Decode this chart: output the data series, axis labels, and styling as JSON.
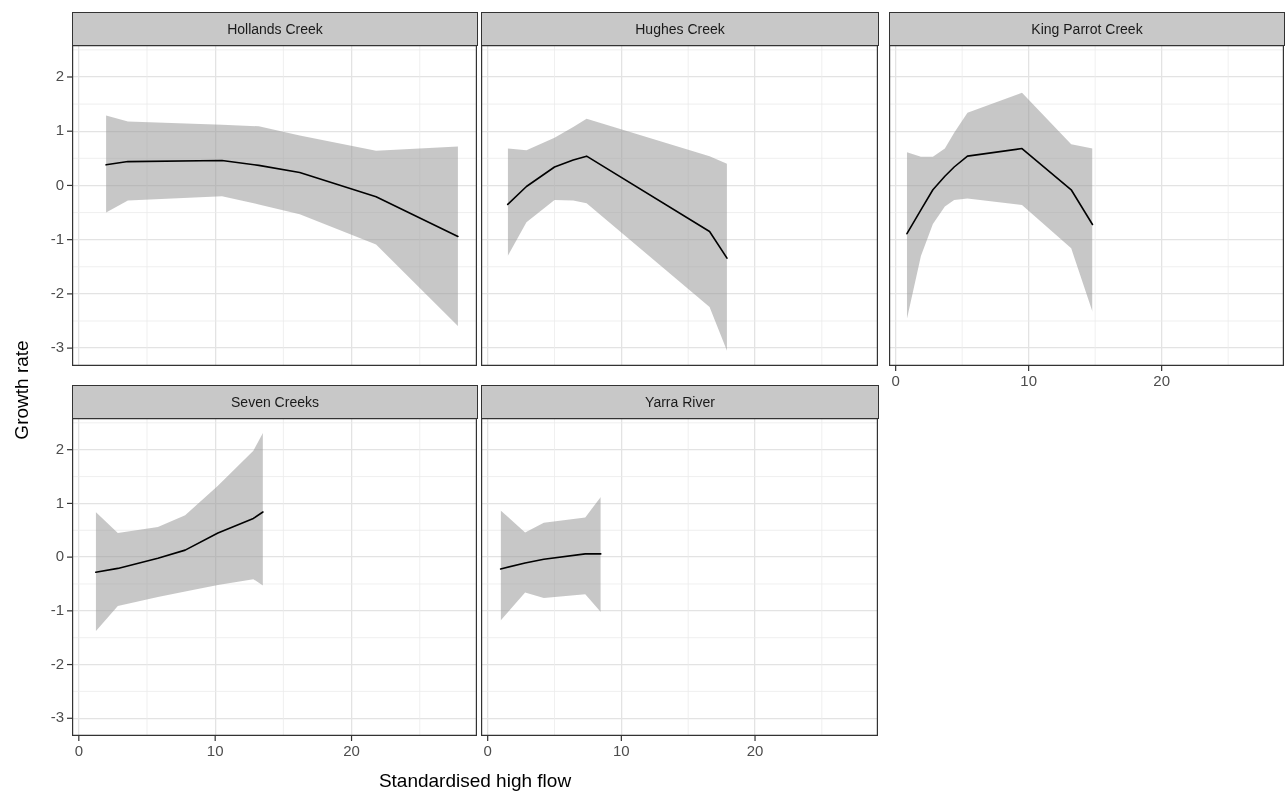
{
  "chart_data": [
    {
      "type": "line",
      "title": "Hollands Creek",
      "xlim": [
        -0.5,
        29.2
      ],
      "ylim": [
        -3.33,
        2.59
      ],
      "xticks": [
        0,
        10,
        20
      ],
      "yticks": [
        -3,
        -2,
        -1,
        0,
        1,
        2
      ],
      "grid": true,
      "legend": false,
      "tick_labels": "y",
      "marker": "none",
      "line_style": "solid",
      "series": [
        {
          "color": "#000000",
          "x": [
            2.0,
            3.6,
            10.5,
            13.2,
            16.2,
            21.8,
            27.8
          ],
          "values": [
            0.38,
            0.44,
            0.46,
            0.37,
            0.24,
            -0.21,
            -0.94
          ],
          "upper": [
            1.29,
            1.18,
            1.12,
            1.09,
            0.92,
            0.64,
            0.72
          ],
          "lower": [
            -0.5,
            -0.28,
            -0.2,
            -0.35,
            -0.53,
            -1.09,
            -2.59
          ]
        }
      ]
    },
    {
      "type": "line",
      "title": "Hughes Creek",
      "xlim": [
        -0.5,
        29.2
      ],
      "ylim": [
        -3.33,
        2.59
      ],
      "xticks": [
        0,
        10,
        20
      ],
      "yticks": [
        -3,
        -2,
        -1,
        0,
        1,
        2
      ],
      "grid": true,
      "legend": false,
      "tick_labels": false,
      "marker": "none",
      "line_style": "solid",
      "series": [
        {
          "color": "#000000",
          "x": [
            1.5,
            2.9,
            5.0,
            6.4,
            7.4,
            16.6,
            17.9
          ],
          "values": [
            -0.35,
            -0.02,
            0.34,
            0.47,
            0.54,
            -0.85,
            -1.34
          ],
          "upper": [
            0.68,
            0.65,
            0.88,
            1.08,
            1.23,
            0.54,
            0.4
          ],
          "lower": [
            -1.3,
            -0.68,
            -0.27,
            -0.28,
            -0.33,
            -2.24,
            -3.05
          ]
        }
      ]
    },
    {
      "type": "line",
      "title": "King Parrot Creek",
      "xlim": [
        -0.5,
        29.2
      ],
      "ylim": [
        -3.33,
        2.59
      ],
      "xticks": [
        0,
        10,
        20
      ],
      "yticks": [
        -3,
        -2,
        -1,
        0,
        1,
        2
      ],
      "grid": true,
      "legend": false,
      "tick_labels": "x",
      "marker": "none",
      "line_style": "solid",
      "series": [
        {
          "color": "#000000",
          "x": [
            0.85,
            1.9,
            2.8,
            3.7,
            4.4,
            5.4,
            9.5,
            13.2,
            14.8
          ],
          "values": [
            -0.89,
            -0.45,
            -0.08,
            0.17,
            0.34,
            0.54,
            0.68,
            -0.08,
            -0.72
          ],
          "upper": [
            0.61,
            0.53,
            0.53,
            0.68,
            0.97,
            1.34,
            1.71,
            0.76,
            0.68
          ],
          "lower": [
            -2.46,
            -1.3,
            -0.71,
            -0.39,
            -0.27,
            -0.24,
            -0.36,
            -1.16,
            -2.33
          ]
        }
      ]
    },
    {
      "type": "line",
      "title": "Seven Creeks",
      "xlabel": "Standardised high flow",
      "ylabel": "Growth rate",
      "xlim": [
        -0.5,
        29.2
      ],
      "ylim": [
        -3.33,
        2.59
      ],
      "xticks": [
        0,
        10,
        20
      ],
      "yticks": [
        -3,
        -2,
        -1,
        0,
        1,
        2
      ],
      "grid": true,
      "legend": false,
      "marker": "none",
      "line_style": "solid",
      "series": [
        {
          "color": "#000000",
          "x": [
            1.24,
            2.86,
            5.8,
            7.8,
            10.2,
            12.8,
            13.5
          ],
          "values": [
            -0.28,
            -0.21,
            -0.02,
            0.13,
            0.45,
            0.72,
            0.84
          ],
          "upper": [
            0.84,
            0.45,
            0.56,
            0.78,
            1.33,
            1.98,
            2.31
          ],
          "lower": [
            -1.38,
            -0.91,
            -0.74,
            -0.64,
            -0.52,
            -0.41,
            -0.53
          ]
        }
      ]
    },
    {
      "type": "line",
      "title": "Yarra River",
      "xlim": [
        -0.5,
        29.2
      ],
      "ylim": [
        -3.33,
        2.59
      ],
      "xticks": [
        0,
        10,
        20
      ],
      "yticks": [
        -3,
        -2,
        -1,
        0,
        1,
        2
      ],
      "grid": true,
      "legend": false,
      "tick_labels": "x",
      "marker": "none",
      "line_style": "solid",
      "series": [
        {
          "color": "#000000",
          "x": [
            0.97,
            2.8,
            4.2,
            7.3,
            8.46
          ],
          "values": [
            -0.22,
            -0.11,
            -0.04,
            0.06,
            0.06
          ],
          "upper": [
            0.87,
            0.46,
            0.64,
            0.74,
            1.12
          ],
          "lower": [
            -1.18,
            -0.66,
            -0.76,
            -0.69,
            -1.02
          ]
        }
      ]
    }
  ]
}
